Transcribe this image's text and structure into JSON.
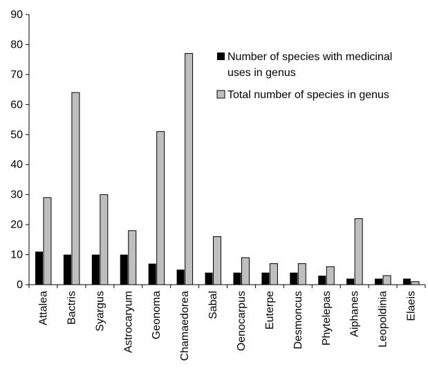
{
  "chart_data": {
    "type": "bar",
    "title": "",
    "xlabel": "",
    "ylabel": "",
    "ylim": [
      0,
      90
    ],
    "yticks": [
      "0",
      "10",
      "20",
      "30",
      "40",
      "50",
      "60",
      "70",
      "80",
      "90"
    ],
    "grid": false,
    "legend_position": "top-right",
    "categories": [
      "Attalea",
      "Bactris",
      "Syargus",
      "Astrocaryum",
      "Geonoma",
      "Chamaedorea",
      "Sabal",
      "Oenocarpus",
      "Euterpe",
      "Desmoncus",
      "Phytelepas",
      "Aiphanes",
      "Leopoldinia",
      "Elaeis"
    ],
    "series": [
      {
        "name": "Number of species with medicinal uses in genus",
        "color": "#000000",
        "values": [
          11,
          10,
          10,
          10,
          7,
          5,
          4,
          4,
          4,
          4,
          3,
          2,
          2,
          2
        ]
      },
      {
        "name": "Total number of species in genus",
        "color": "#bfbfbf",
        "values": [
          29,
          64,
          30,
          18,
          51,
          77,
          16,
          9,
          7,
          7,
          6,
          22,
          3,
          1
        ]
      }
    ],
    "legend": {
      "series0_line1": "Number of species with medicinal",
      "series0_line2": "uses in genus",
      "series1_line1": "Total number of species in genus"
    }
  }
}
